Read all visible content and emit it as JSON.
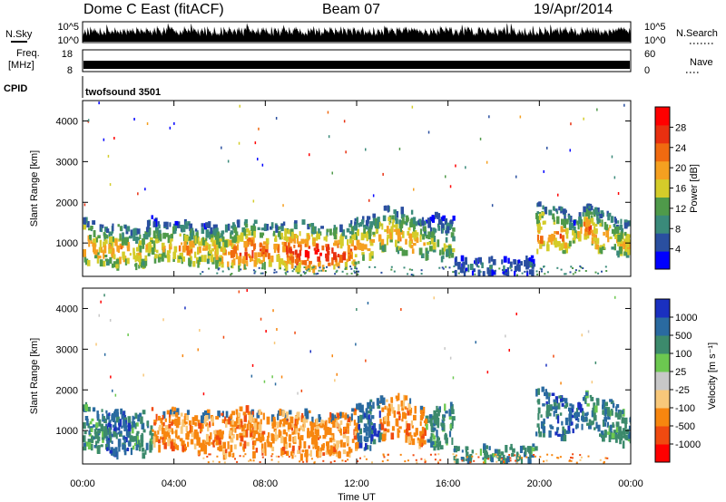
{
  "header": {
    "station": "Dome C East (fitACF)",
    "beam": "Beam 07",
    "date": "19/Apr/2014"
  },
  "strips": {
    "nsky": {
      "label": "N.Sky",
      "ticks": [
        "10^5",
        "10^0"
      ]
    },
    "nsearch": {
      "label": "N.Search",
      "ticks": [
        "10^5",
        "10^0"
      ]
    },
    "freq": {
      "label_1": "Freq.",
      "label_2": "[MHz]",
      "ticks": [
        "18",
        "8"
      ]
    },
    "nave": {
      "label": "Nave",
      "ticks": [
        "60",
        "0"
      ]
    },
    "cpid": {
      "label": "CPID",
      "value": "twofsound 3501"
    }
  },
  "xaxis": {
    "label": "Time UT",
    "ticks": [
      "00:00",
      "04:00",
      "08:00",
      "12:00",
      "16:00",
      "20:00",
      "00:00"
    ]
  },
  "colors": {
    "power": [
      "#0000ff",
      "#2a4fa0",
      "#3a8a7a",
      "#4f9a4a",
      "#d4cc2a",
      "#f5a020",
      "#f06a10",
      "#e83010",
      "#ff0000"
    ],
    "velocity": [
      "#ff0000",
      "#f04a10",
      "#f7860f",
      "#f8c87a",
      "#c8c8c8",
      "#6cc850",
      "#3c8a6c",
      "#2a6aa0",
      "#1a30c0"
    ]
  },
  "chart_data": [
    {
      "type": "heatmap",
      "title": "Power",
      "ylabel": "Slant Range [km]",
      "xlabel": "Time UT",
      "ylim": [
        180,
        4500
      ],
      "yticks": [
        "1000",
        "2000",
        "3000",
        "4000"
      ],
      "colorbar": {
        "label": "Power [dB]",
        "ticks": [
          "4",
          "8",
          "12",
          "16",
          "20",
          "24",
          "28"
        ],
        "range": [
          0,
          32
        ]
      },
      "x_hours": [
        0,
        0.5,
        1,
        1.5,
        2,
        2.5,
        3,
        3.5,
        4,
        4.5,
        5,
        5.5,
        6,
        6.5,
        7,
        7.5,
        8,
        8.5,
        9,
        9.5,
        10,
        10.5,
        11,
        11.5,
        12,
        12.5,
        13,
        13.5,
        14,
        14.5,
        15,
        15.5,
        16,
        20,
        20.5,
        21,
        21.5,
        22,
        22.5,
        23,
        23.5
      ],
      "echo_lower_km": [
        550,
        500,
        550,
        450,
        600,
        400,
        600,
        650,
        600,
        550,
        500,
        600,
        450,
        400,
        450,
        500,
        500,
        550,
        450,
        400,
        400,
        450,
        450,
        400,
        550,
        600,
        900,
        950,
        800,
        650,
        700,
        650,
        600,
        850,
        1000,
        800,
        1050,
        1200,
        850,
        900,
        750
      ],
      "echo_upper_km": [
        1800,
        1600,
        1500,
        1600,
        1400,
        1500,
        1700,
        1550,
        1600,
        1600,
        1500,
        1550,
        1500,
        1500,
        1650,
        1600,
        1500,
        1550,
        1600,
        1600,
        1500,
        1450,
        1500,
        1450,
        1700,
        1750,
        1900,
        2000,
        1900,
        1800,
        1600,
        1800,
        1700,
        2100,
        2000,
        1900,
        1600,
        2000,
        1900,
        1800,
        1600
      ],
      "peak_power_db": [
        22,
        20,
        18,
        22,
        20,
        18,
        16,
        18,
        20,
        22,
        20,
        18,
        20,
        24,
        26,
        26,
        24,
        22,
        26,
        28,
        30,
        30,
        28,
        24,
        22,
        20,
        20,
        18,
        22,
        20,
        16,
        14,
        14,
        22,
        24,
        22,
        16,
        24,
        22,
        20,
        18
      ]
    },
    {
      "type": "heatmap",
      "title": "Velocity",
      "ylabel": "Slant Range [km]",
      "xlabel": "Time UT",
      "ylim": [
        180,
        4500
      ],
      "yticks": [
        "1000",
        "2000",
        "3000",
        "4000"
      ],
      "colorbar": {
        "label": "Velocity [m s⁻¹]",
        "ticks": [
          "1000",
          "500",
          "100",
          "25",
          "-25",
          "-100",
          "-500",
          "-1000"
        ]
      },
      "x_hours": [
        0,
        1,
        2,
        3,
        4,
        5,
        6,
        7,
        8,
        9,
        10,
        11,
        12,
        13,
        14,
        15,
        16,
        20,
        21,
        22,
        23
      ],
      "dominant_velocity_class": [
        "100",
        "500",
        "100",
        "-100",
        "-100",
        "-100",
        "-100",
        "-100",
        "-100",
        "-100",
        "-100",
        "-100",
        "500",
        "-100",
        "-100",
        "100",
        "100",
        "500",
        "500",
        "100",
        "100"
      ]
    }
  ]
}
